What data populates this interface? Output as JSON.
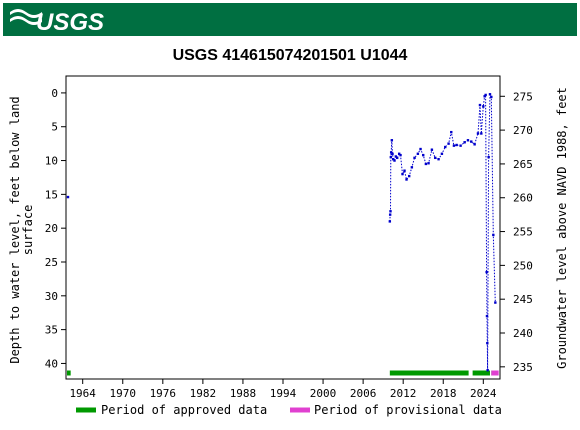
{
  "header": {
    "logo_text": "USGS",
    "banner_color": "#006f41"
  },
  "chart_data": {
    "type": "scatter",
    "title": "USGS 414615074201501 U1044",
    "ylabel_left_line1": "Depth to water level, feet below land",
    "ylabel_left_line2": "surface",
    "ylabel_right": "Groundwater level above NAVD 1988, feet",
    "x_tick_labels": [
      "1964",
      "1970",
      "1976",
      "1982",
      "1988",
      "1994",
      "2000",
      "2006",
      "2012",
      "2018",
      "2024"
    ],
    "x_ticks": [
      1964,
      1970,
      1976,
      1982,
      1988,
      1994,
      2000,
      2006,
      2012,
      2018,
      2024
    ],
    "xlim": [
      1961.5,
      2026.5
    ],
    "ylim_left": [
      42.3,
      -2.5
    ],
    "y_ticks_left": [
      0,
      5,
      10,
      15,
      20,
      25,
      30,
      35,
      40
    ],
    "y_tick_labels_left": [
      "0",
      "5",
      "10",
      "15",
      "20",
      "25",
      "30",
      "35",
      "40"
    ],
    "right_axis_offset": 275.5,
    "y_ticks_right": [
      275,
      270,
      265,
      260,
      255,
      250,
      245,
      240,
      235
    ],
    "y_tick_labels_right": [
      "275",
      "270",
      "265",
      "260",
      "255",
      "250",
      "245",
      "240",
      "235"
    ],
    "grid": false,
    "series_color": "#0000cc",
    "isolated_point": {
      "x": 1961.8,
      "y": 15.4
    },
    "series": [
      {
        "points": [
          [
            2010.0,
            19.0
          ],
          [
            2010.05,
            18.0
          ],
          [
            2010.1,
            17.5
          ],
          [
            2010.15,
            9.5
          ],
          [
            2010.2,
            8.8
          ],
          [
            2010.3,
            7.0
          ],
          [
            2010.4,
            9.0
          ],
          [
            2010.5,
            9.8
          ],
          [
            2010.7,
            10.0
          ],
          [
            2010.9,
            9.4
          ],
          [
            2011.1,
            9.6
          ],
          [
            2011.4,
            9.0
          ],
          [
            2011.6,
            9.2
          ],
          [
            2011.9,
            12.0
          ],
          [
            2012.2,
            11.5
          ],
          [
            2012.5,
            12.8
          ],
          [
            2012.9,
            12.3
          ],
          [
            2013.3,
            11.0
          ],
          [
            2013.7,
            9.6
          ],
          [
            2014.2,
            9.0
          ],
          [
            2014.6,
            8.3
          ],
          [
            2015.0,
            9.2
          ],
          [
            2015.4,
            10.5
          ],
          [
            2015.8,
            10.4
          ],
          [
            2016.3,
            8.4
          ],
          [
            2016.8,
            9.6
          ],
          [
            2017.3,
            9.8
          ],
          [
            2017.8,
            9.0
          ],
          [
            2018.3,
            8.0
          ],
          [
            2018.8,
            7.5
          ],
          [
            2019.2,
            5.8
          ],
          [
            2019.6,
            7.8
          ],
          [
            2020.0,
            7.7
          ],
          [
            2020.6,
            7.8
          ],
          [
            2021.2,
            7.3
          ],
          [
            2021.7,
            7.0
          ],
          [
            2022.2,
            7.2
          ],
          [
            2022.7,
            7.6
          ],
          [
            2023.2,
            6.0
          ],
          [
            2023.5,
            1.8
          ],
          [
            2023.7,
            6.0
          ],
          [
            2024.0,
            2.0
          ],
          [
            2024.2,
            0.5
          ],
          [
            2024.35,
            0.3
          ],
          [
            2024.5,
            26.5
          ],
          [
            2024.55,
            33.0
          ],
          [
            2024.6,
            37.0
          ],
          [
            2024.65,
            41.0
          ],
          [
            2024.8,
            9.5
          ],
          [
            2025.0,
            0.2
          ],
          [
            2025.2,
            0.6
          ],
          [
            2025.5,
            21.0
          ],
          [
            2025.8,
            31.0
          ]
        ]
      }
    ],
    "legend": {
      "placement": "bottom",
      "approved_label": "Period of approved data",
      "provisional_label": "Period of provisional data",
      "approved_color": "#009900",
      "provisional_color": "#e040d0"
    },
    "approved_periods": [
      [
        1961.5,
        1962.2
      ],
      [
        2010.0,
        2021.8
      ],
      [
        2022.4,
        2025.0
      ],
      [
        2025.2,
        2025.4
      ]
    ],
    "provisional_periods": [
      [
        2025.2,
        2026.3
      ]
    ]
  }
}
